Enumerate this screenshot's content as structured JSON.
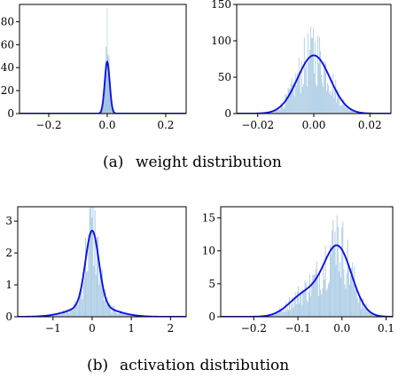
{
  "chart_data": [
    {
      "id": "weight-left",
      "type": "area",
      "xlim": [
        -0.3,
        0.27
      ],
      "ylim": [
        0,
        95
      ],
      "xticks": [
        -0.2,
        0.0,
        0.2
      ],
      "xtick_labels": [
        "−0.2",
        "0.0",
        "0.2"
      ],
      "yticks": [
        0,
        20,
        40,
        60,
        80
      ],
      "ytick_labels": [
        "0",
        "20",
        "40",
        "60",
        "80"
      ],
      "kde": {
        "center": 0.0,
        "peak": 45,
        "sigma": 0.0085
      },
      "histogram_peak": 92,
      "histogram_span": [
        -0.07,
        0.07
      ],
      "series": [
        {
          "name": "",
          "kind": "histogram+kde",
          "color": "#1010e0",
          "fill": "#9ec3df"
        }
      ]
    },
    {
      "id": "weight-right",
      "type": "area",
      "xlim": [
        -0.0275,
        0.0275
      ],
      "ylim": [
        0,
        150
      ],
      "xticks": [
        -0.02,
        0.0,
        0.02
      ],
      "xtick_labels": [
        "−0.02",
        "0.00",
        "0.02"
      ],
      "yticks": [
        0,
        50,
        100,
        150
      ],
      "ytick_labels": [
        "0",
        "50",
        "100",
        "150"
      ],
      "kde": {
        "center": 0.0,
        "peak": 80,
        "sigma": 0.0058
      },
      "histogram_peak": 118,
      "histogram_span": [
        -0.024,
        0.024
      ],
      "series": [
        {
          "name": "",
          "kind": "histogram+kde",
          "color": "#1010e0",
          "fill": "#9ec3df"
        }
      ]
    },
    {
      "id": "activation-left",
      "type": "area",
      "xlim": [
        -1.9,
        2.4
      ],
      "ylim": [
        0,
        3.45
      ],
      "xticks": [
        -1,
        0,
        1,
        2
      ],
      "xtick_labels": [
        "−1",
        "0",
        "1",
        "2"
      ],
      "yticks": [
        0,
        1,
        2,
        3
      ],
      "ytick_labels": [
        "0",
        "1",
        "2",
        "3"
      ],
      "kde": {
        "center": 0.0,
        "peak": 2.35,
        "sigma": 0.17,
        "tail": 0.35
      },
      "histogram_peak": 3.1,
      "histogram_span": [
        -1.7,
        2.3
      ],
      "series": [
        {
          "name": "",
          "kind": "histogram+kde",
          "color": "#1010e0",
          "fill": "#9ec3df"
        }
      ]
    },
    {
      "id": "activation-right",
      "type": "area",
      "xlim": [
        -0.275,
        0.115
      ],
      "ylim": [
        0,
        16.7
      ],
      "xticks": [
        -0.2,
        -0.1,
        0.0,
        0.1
      ],
      "xtick_labels": [
        "−0.2",
        "−0.1",
        "0.0",
        "0.1"
      ],
      "yticks": [
        0,
        5,
        10,
        15
      ],
      "ytick_labels": [
        "0",
        "5",
        "10",
        "15"
      ],
      "kde": {
        "center": -0.01,
        "peak": 10.5,
        "sigma": 0.032,
        "shoulder_center": -0.085,
        "shoulder_peak": 3.3,
        "shoulder_sigma": 0.035
      },
      "histogram_peak": 15.4,
      "histogram_span": [
        -0.23,
        0.1
      ],
      "series": [
        {
          "name": "",
          "kind": "histogram+kde",
          "color": "#1010e0",
          "fill": "#9ec3df"
        }
      ]
    }
  ],
  "captions": {
    "a_label": "(a)",
    "a_text": "weight distribution",
    "b_label": "(b)",
    "b_text": "activation distribution"
  }
}
